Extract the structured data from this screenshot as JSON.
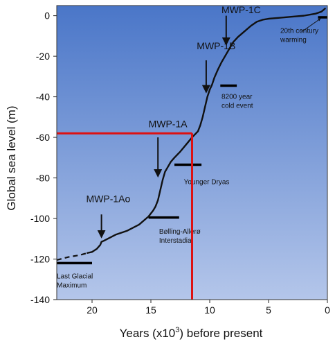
{
  "chart_data": {
    "type": "line",
    "xlabel": "Years (x10",
    "xlabel_sup": "3",
    "xlabel_tail": ") before present",
    "ylabel": "Global sea level (m)",
    "xlim": [
      23,
      0
    ],
    "ylim": [
      -140,
      5
    ],
    "xticks": [
      20,
      15,
      10,
      5,
      0
    ],
    "yticks": [
      0,
      -20,
      -40,
      -60,
      -80,
      -100,
      -120,
      -140
    ],
    "background": [
      "#4a76c8",
      "#b4c6ea"
    ],
    "curve_color": "#111111",
    "highlight_color": "#dd1111",
    "dashed_segment": {
      "x": [
        23.0,
        22.0,
        21.0,
        20.4
      ],
      "y": [
        -120.5,
        -119.0,
        -118.0,
        -117.0
      ]
    },
    "series": [
      {
        "x": [
          20.4,
          20.0,
          19.6,
          19.3,
          19.2,
          19.0,
          18.5,
          18.0,
          17.0,
          16.0,
          15.2,
          14.8,
          14.6,
          14.4,
          14.2,
          14.0,
          13.8,
          13.6,
          13.3,
          13.0,
          12.5,
          12.0,
          11.5,
          11.0,
          10.8,
          10.6,
          10.4,
          10.2,
          10.0,
          9.8,
          9.6,
          9.3,
          9.0,
          8.6,
          8.3,
          8.2,
          8.0,
          7.6,
          7.0,
          6.5,
          6.0,
          5.5,
          5.0,
          4.0,
          3.0,
          2.0,
          1.0,
          0.5,
          0.2
        ],
        "y": [
          -117.0,
          -116.5,
          -115.0,
          -113.0,
          -111.5,
          -111.0,
          -109.5,
          -108.0,
          -106.0,
          -103.0,
          -99.0,
          -96.0,
          -94.0,
          -91.0,
          -86.0,
          -81.0,
          -77.0,
          -75.0,
          -72.0,
          -70.0,
          -67.0,
          -63.5,
          -60.0,
          -57.0,
          -54.0,
          -50.0,
          -45.0,
          -40.0,
          -36.5,
          -34.0,
          -30.5,
          -26.5,
          -23.0,
          -19.0,
          -16.0,
          -15.0,
          -13.0,
          -10.5,
          -7.5,
          -5.0,
          -3.0,
          -2.0,
          -1.5,
          -1.0,
          -0.5,
          0.0,
          1.0,
          2.0,
          3.5
        ]
      }
    ],
    "highlight": {
      "x": 11.5,
      "y": -58
    },
    "arrows": [
      {
        "label": "MWP-1C",
        "x": 8.6,
        "y_from": 0,
        "y_to": -14,
        "lx": 9.0,
        "ly": 1.2
      },
      {
        "label": "MWP-1B",
        "x": 10.3,
        "y_from": -22,
        "y_to": -37.5,
        "lx": 11.1,
        "ly": -16.5
      },
      {
        "label": "MWP-1A",
        "x": 14.4,
        "y_from": -60,
        "y_to": -79,
        "lx": 15.2,
        "ly": -55
      },
      {
        "label": "MWP-1Ao",
        "x": 19.2,
        "y_from": -98,
        "y_to": -109,
        "lx": 20.5,
        "ly": -92
      }
    ],
    "events": [
      {
        "label": [
          "Last Glacial",
          "Maximum"
        ],
        "x1": 23.0,
        "x2": 20.0,
        "y": -122.0,
        "tx": 23.0,
        "ty": -129.5
      },
      {
        "label": [
          "Bølling-Allerø",
          "Interstadial"
        ],
        "x1": 15.2,
        "x2": 12.6,
        "y": -99.5,
        "tx": 14.3,
        "ty": -107.5
      },
      {
        "label": [
          "Younger Dryas"
        ],
        "x1": 13.0,
        "x2": 10.7,
        "y": -73.5,
        "tx": 12.2,
        "ty": -83.0
      },
      {
        "label": [
          "8200 year",
          "cold event"
        ],
        "x1": 9.1,
        "x2": 7.7,
        "y": -34.5,
        "tx": 9.0,
        "ty": -41.0
      },
      {
        "label": [
          "20th century",
          "warming"
        ],
        "x1": 0.8,
        "x2": 0.0,
        "y": -0.8,
        "tx": 4.0,
        "ty": -8.5
      }
    ],
    "warming_pointer": {
      "x1": 2.2,
      "y1": -8.0,
      "x2": 0.6,
      "y2": -1.5
    }
  }
}
